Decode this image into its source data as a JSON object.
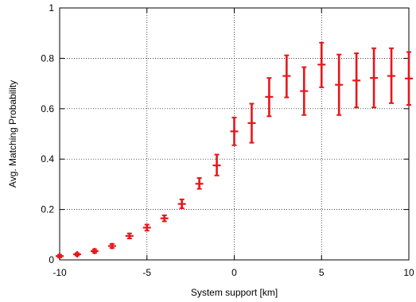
{
  "chart_data": {
    "type": "scatter",
    "xlabel": "System support [km]",
    "ylabel": "Avg. Matching Probability",
    "xlim": [
      -10,
      10
    ],
    "ylim": [
      0,
      1
    ],
    "xticks": [
      -10,
      -5,
      0,
      5,
      10
    ],
    "yticks": [
      0,
      0.2,
      0.4,
      0.6,
      0.8,
      1
    ],
    "xtick_labels": [
      "-10",
      "-5",
      "0",
      "5",
      "10"
    ],
    "ytick_labels": [
      "0",
      "0.2",
      "0.4",
      "0.6",
      "0.8",
      "1"
    ],
    "grid": true,
    "colors": {
      "series": "#e8161b"
    },
    "series": [
      {
        "points": [
          {
            "x": -10,
            "y": 0.015,
            "ylow": 0.01,
            "yhigh": 0.02
          },
          {
            "x": -9,
            "y": 0.022,
            "ylow": 0.017,
            "yhigh": 0.027
          },
          {
            "x": -8,
            "y": 0.035,
            "ylow": 0.028,
            "yhigh": 0.042
          },
          {
            "x": -7,
            "y": 0.055,
            "ylow": 0.047,
            "yhigh": 0.063
          },
          {
            "x": -6,
            "y": 0.095,
            "ylow": 0.085,
            "yhigh": 0.105
          },
          {
            "x": -5,
            "y": 0.128,
            "ylow": 0.116,
            "yhigh": 0.14
          },
          {
            "x": -4,
            "y": 0.165,
            "ylow": 0.153,
            "yhigh": 0.177
          },
          {
            "x": -3,
            "y": 0.222,
            "ylow": 0.205,
            "yhigh": 0.24
          },
          {
            "x": -2,
            "y": 0.302,
            "ylow": 0.282,
            "yhigh": 0.325
          },
          {
            "x": -1,
            "y": 0.375,
            "ylow": 0.335,
            "yhigh": 0.418
          },
          {
            "x": 0,
            "y": 0.51,
            "ylow": 0.455,
            "yhigh": 0.565
          },
          {
            "x": 1,
            "y": 0.543,
            "ylow": 0.465,
            "yhigh": 0.62
          },
          {
            "x": 2,
            "y": 0.647,
            "ylow": 0.57,
            "yhigh": 0.722
          },
          {
            "x": 3,
            "y": 0.73,
            "ylow": 0.645,
            "yhigh": 0.812
          },
          {
            "x": 4,
            "y": 0.67,
            "ylow": 0.575,
            "yhigh": 0.765
          },
          {
            "x": 5,
            "y": 0.775,
            "ylow": 0.685,
            "yhigh": 0.862
          },
          {
            "x": 6,
            "y": 0.695,
            "ylow": 0.575,
            "yhigh": 0.815
          },
          {
            "x": 7,
            "y": 0.712,
            "ylow": 0.605,
            "yhigh": 0.82
          },
          {
            "x": 8,
            "y": 0.722,
            "ylow": 0.605,
            "yhigh": 0.84
          },
          {
            "x": 9,
            "y": 0.73,
            "ylow": 0.622,
            "yhigh": 0.84
          },
          {
            "x": 10,
            "y": 0.72,
            "ylow": 0.615,
            "yhigh": 0.825
          }
        ]
      }
    ]
  }
}
